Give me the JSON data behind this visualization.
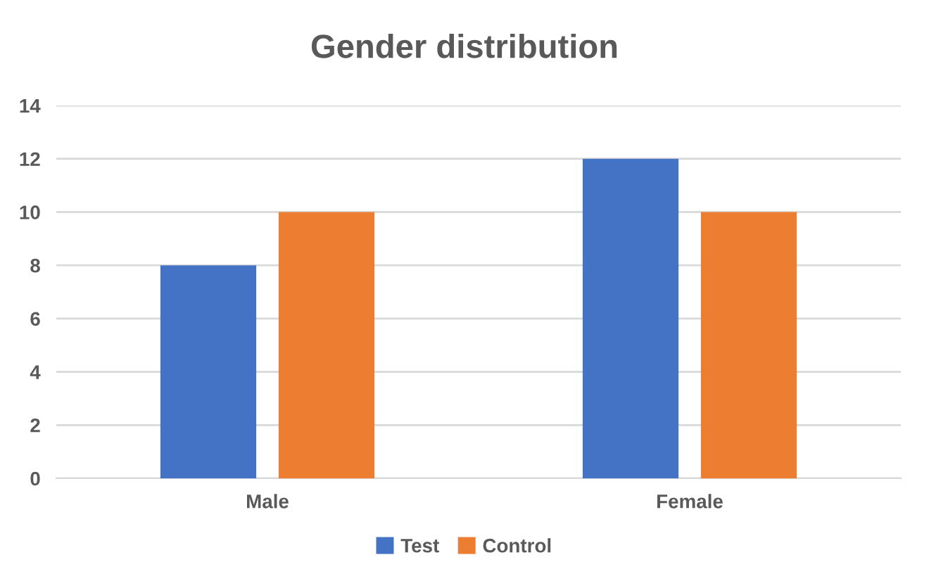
{
  "chart_data": {
    "type": "bar",
    "title": "Gender distribution",
    "categories": [
      "Male",
      "Female"
    ],
    "series": [
      {
        "name": "Test",
        "color": "#4472c4",
        "values": [
          8,
          12
        ]
      },
      {
        "name": "Control",
        "color": "#ed7d31",
        "values": [
          10,
          10
        ]
      }
    ],
    "ylim": [
      0,
      14
    ],
    "yticks": [
      0,
      2,
      4,
      6,
      8,
      10,
      12,
      14
    ],
    "grid": "y",
    "legend": "bottom"
  }
}
